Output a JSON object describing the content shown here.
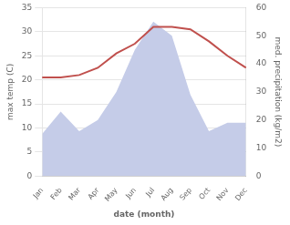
{
  "chart_data": {
    "type": "line",
    "categories": [
      "Jan",
      "Feb",
      "Mar",
      "Apr",
      "May",
      "Jun",
      "Jul",
      "Aug",
      "Sep",
      "Oct",
      "Nov",
      "Dec"
    ],
    "series": [
      {
        "type": "area",
        "color": "#c5cce8",
        "axis": "y2",
        "values": [
          15.0,
          23.0,
          16.0,
          20.0,
          30.0,
          45.0,
          55.0,
          50.0,
          29.0,
          16.0,
          19.0,
          19.0
        ]
      },
      {
        "type": "line",
        "color": "#c0504d",
        "axis": "y",
        "values": [
          20.5,
          20.5,
          21.0,
          22.5,
          25.5,
          27.5,
          31.0,
          31.0,
          30.5,
          28.0,
          25.0,
          22.5
        ]
      }
    ],
    "xlabel": "date (month)",
    "ylabel": "max temp (C)",
    "y2label": "med. precipitation (kg/m2)",
    "ylim": [
      0,
      35
    ],
    "yticks": [
      0,
      5,
      10,
      15,
      20,
      25,
      30,
      35
    ],
    "y2lim": [
      0,
      60
    ],
    "y2ticks": [
      0,
      10,
      20,
      30,
      40,
      50,
      60
    ],
    "grid": true
  }
}
